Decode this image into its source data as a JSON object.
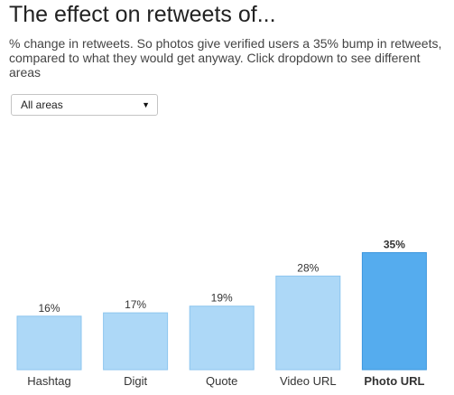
{
  "title": "The effect on retweets of...",
  "subtitle": "% change in retweets. So photos give verified users a 35% bump in retweets, compared to what they would get anyway. Click dropdown to see different areas",
  "dropdown": {
    "selected": "All areas"
  },
  "colors": {
    "bar": "#add8f7",
    "bar_border": "#8dc6ef",
    "highlight": "#55acee",
    "highlight_border": "#3d97de"
  },
  "chart_data": {
    "type": "bar",
    "title": "The effect on retweets of...",
    "categories": [
      "Hashtag",
      "Digit",
      "Quote",
      "Video URL",
      "Photo URL"
    ],
    "values": [
      16,
      17,
      19,
      28,
      35
    ],
    "data_labels": [
      "16%",
      "17%",
      "19%",
      "28%",
      "35%"
    ],
    "highlighted_category": "Photo URL",
    "xlabel": "",
    "ylabel": "",
    "ylim": [
      0,
      35
    ],
    "grid": false,
    "legend": "none"
  }
}
